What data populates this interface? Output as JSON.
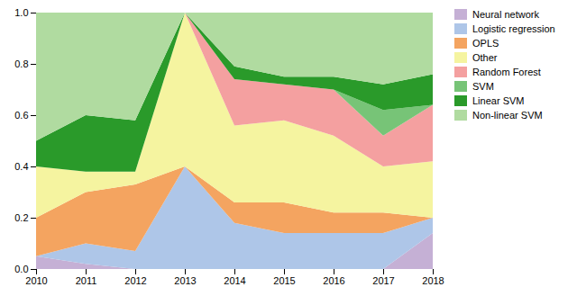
{
  "chart_data": {
    "type": "area",
    "stacked": true,
    "x": [
      2010,
      2011,
      2012,
      2013,
      2014,
      2015,
      2016,
      2017,
      2018
    ],
    "series": [
      {
        "name": "Neural network",
        "color": "#c5b0d5",
        "values": [
          0.05,
          0.02,
          0.0,
          0.0,
          0.0,
          0.0,
          0.0,
          0.0,
          0.14
        ]
      },
      {
        "name": "Logistic regression",
        "color": "#aec6e8",
        "values": [
          0.0,
          0.08,
          0.07,
          0.4,
          0.18,
          0.14,
          0.14,
          0.14,
          0.06
        ]
      },
      {
        "name": "OPLS",
        "color": "#f4a460",
        "values": [
          0.15,
          0.2,
          0.26,
          0.0,
          0.08,
          0.12,
          0.08,
          0.08,
          0.0
        ]
      },
      {
        "name": "Other",
        "color": "#f5f4a0",
        "values": [
          0.2,
          0.08,
          0.05,
          0.6,
          0.3,
          0.32,
          0.3,
          0.18,
          0.22
        ]
      },
      {
        "name": "Random Forest",
        "color": "#f4a0a0",
        "values": [
          0.0,
          0.0,
          0.0,
          0.0,
          0.18,
          0.14,
          0.18,
          0.12,
          0.22
        ]
      },
      {
        "name": "SVM",
        "color": "#77c477",
        "values": [
          0.0,
          0.0,
          0.0,
          0.0,
          0.0,
          0.0,
          0.0,
          0.1,
          0.0
        ]
      },
      {
        "name": "Linear SVM",
        "color": "#2a9a2a",
        "values": [
          0.1,
          0.22,
          0.2,
          0.0,
          0.05,
          0.03,
          0.05,
          0.1,
          0.12
        ]
      },
      {
        "name": "Non-linear SVM",
        "color": "#b0dba0",
        "values": [
          0.5,
          0.4,
          0.42,
          0.0,
          0.21,
          0.25,
          0.25,
          0.28,
          0.24
        ]
      }
    ],
    "xlim": [
      2010,
      2018
    ],
    "xticks": [
      2010,
      2011,
      2012,
      2013,
      2014,
      2015,
      2016,
      2017,
      2018
    ],
    "ylim": [
      0,
      1.0
    ],
    "yticks": [
      {
        "value": 0,
        "label": "0.0"
      },
      {
        "value": 0.2,
        "label": "0.2"
      },
      {
        "value": 0.4,
        "label": "0.4"
      },
      {
        "value": 0.6,
        "label": "0.6"
      },
      {
        "value": 0.8,
        "label": "0.8"
      },
      {
        "value": 1.0,
        "label": "1.0"
      }
    ],
    "grid": false,
    "legend": "right"
  }
}
